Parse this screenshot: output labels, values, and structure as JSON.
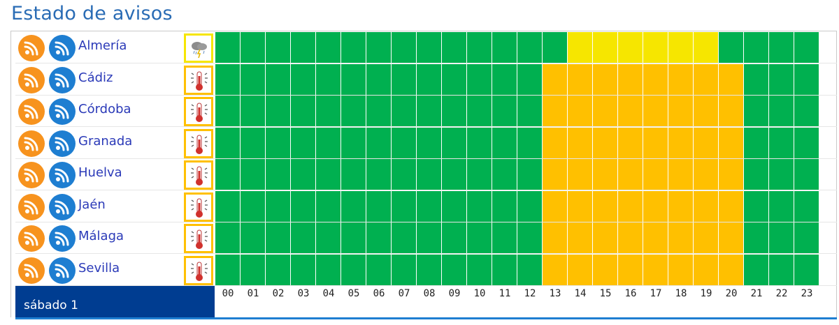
{
  "title": "Estado de avisos",
  "colors": {
    "green": "#00b050",
    "yellow": "#f6e600",
    "orange": "#ffc000",
    "rss_orange": "#f7931e",
    "rss_blue": "#1e7ed1",
    "day_bar": "#003d91"
  },
  "hours": [
    "00",
    "01",
    "02",
    "03",
    "04",
    "05",
    "06",
    "07",
    "08",
    "09",
    "10",
    "11",
    "12",
    "13",
    "14",
    "15",
    "16",
    "17",
    "18",
    "19",
    "20",
    "21",
    "22",
    "23"
  ],
  "day": "sábado 1",
  "provinces": [
    {
      "name": "Almería",
      "alert_icon": "storm-icon",
      "icon_border": "yellow",
      "levels": [
        "green",
        "green",
        "green",
        "green",
        "green",
        "green",
        "green",
        "green",
        "green",
        "green",
        "green",
        "green",
        "green",
        "green",
        "yellow",
        "yellow",
        "yellow",
        "yellow",
        "yellow",
        "yellow",
        "green",
        "green",
        "green",
        "green"
      ]
    },
    {
      "name": "Cádiz",
      "alert_icon": "high-temperature-icon",
      "icon_border": "orange",
      "levels": [
        "green",
        "green",
        "green",
        "green",
        "green",
        "green",
        "green",
        "green",
        "green",
        "green",
        "green",
        "green",
        "green",
        "orange",
        "orange",
        "orange",
        "orange",
        "orange",
        "orange",
        "orange",
        "orange",
        "green",
        "green",
        "green"
      ]
    },
    {
      "name": "Córdoba",
      "alert_icon": "high-temperature-icon",
      "icon_border": "orange",
      "levels": [
        "green",
        "green",
        "green",
        "green",
        "green",
        "green",
        "green",
        "green",
        "green",
        "green",
        "green",
        "green",
        "green",
        "orange",
        "orange",
        "orange",
        "orange",
        "orange",
        "orange",
        "orange",
        "orange",
        "green",
        "green",
        "green"
      ]
    },
    {
      "name": "Granada",
      "alert_icon": "high-temperature-icon",
      "icon_border": "orange",
      "levels": [
        "green",
        "green",
        "green",
        "green",
        "green",
        "green",
        "green",
        "green",
        "green",
        "green",
        "green",
        "green",
        "green",
        "orange",
        "orange",
        "orange",
        "orange",
        "orange",
        "orange",
        "orange",
        "orange",
        "green",
        "green",
        "green"
      ]
    },
    {
      "name": "Huelva",
      "alert_icon": "high-temperature-icon",
      "icon_border": "orange",
      "levels": [
        "green",
        "green",
        "green",
        "green",
        "green",
        "green",
        "green",
        "green",
        "green",
        "green",
        "green",
        "green",
        "green",
        "orange",
        "orange",
        "orange",
        "orange",
        "orange",
        "orange",
        "orange",
        "orange",
        "green",
        "green",
        "green"
      ]
    },
    {
      "name": "Jaén",
      "alert_icon": "high-temperature-icon",
      "icon_border": "orange",
      "levels": [
        "green",
        "green",
        "green",
        "green",
        "green",
        "green",
        "green",
        "green",
        "green",
        "green",
        "green",
        "green",
        "green",
        "orange",
        "orange",
        "orange",
        "orange",
        "orange",
        "orange",
        "orange",
        "orange",
        "green",
        "green",
        "green"
      ]
    },
    {
      "name": "Málaga",
      "alert_icon": "high-temperature-icon",
      "icon_border": "orange",
      "levels": [
        "green",
        "green",
        "green",
        "green",
        "green",
        "green",
        "green",
        "green",
        "green",
        "green",
        "green",
        "green",
        "green",
        "orange",
        "orange",
        "orange",
        "orange",
        "orange",
        "orange",
        "orange",
        "orange",
        "green",
        "green",
        "green"
      ]
    },
    {
      "name": "Sevilla",
      "alert_icon": "high-temperature-icon",
      "icon_border": "orange",
      "levels": [
        "green",
        "green",
        "green",
        "green",
        "green",
        "green",
        "green",
        "green",
        "green",
        "green",
        "green",
        "green",
        "green",
        "orange",
        "orange",
        "orange",
        "orange",
        "orange",
        "orange",
        "orange",
        "orange",
        "green",
        "green",
        "green"
      ]
    }
  ]
}
